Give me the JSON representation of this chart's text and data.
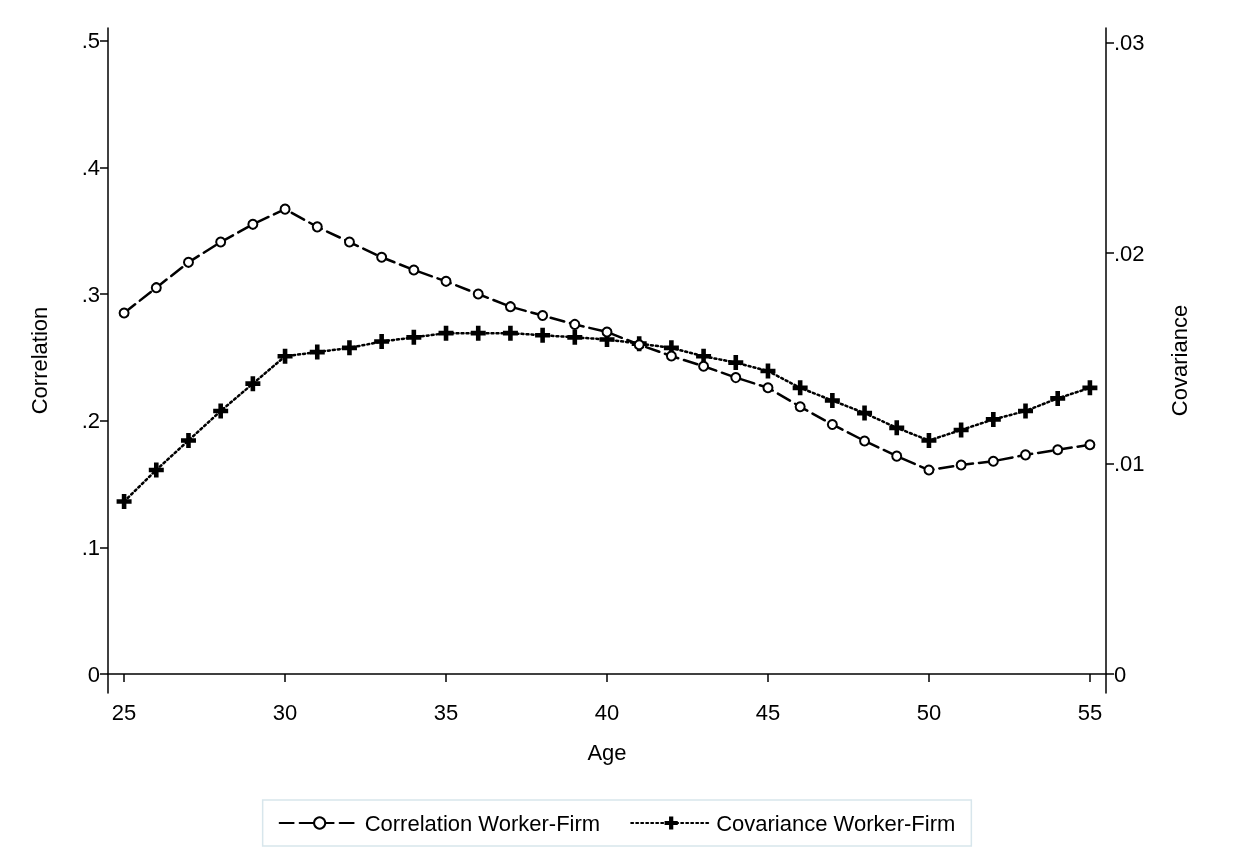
{
  "chart_data": {
    "type": "line",
    "xlabel": "Age",
    "ylabel": "Correlation",
    "y2label": "Covariance",
    "x": [
      25,
      26,
      27,
      28,
      29,
      30,
      31,
      32,
      33,
      34,
      35,
      36,
      37,
      38,
      39,
      40,
      41,
      42,
      43,
      44,
      45,
      46,
      47,
      48,
      49,
      50,
      51,
      52,
      53,
      54,
      55
    ],
    "xlim": [
      24.5,
      55.5
    ],
    "xticks": [
      25,
      30,
      35,
      40,
      45,
      50,
      55
    ],
    "ylim": [
      -0.015,
      0.51
    ],
    "yticks": [
      {
        "value": 0,
        "label": "0"
      },
      {
        "value": 0.1,
        "label": ".1"
      },
      {
        "value": 0.2,
        "label": ".2"
      },
      {
        "value": 0.3,
        "label": ".3"
      },
      {
        "value": 0.4,
        "label": ".4"
      },
      {
        "value": 0.5,
        "label": ".5"
      }
    ],
    "y2lim": [
      -0.0009,
      0.0307
    ],
    "y2ticks": [
      {
        "value": 0,
        "label": "0"
      },
      {
        "value": 0.01,
        "label": ".01"
      },
      {
        "value": 0.02,
        "label": ".02"
      },
      {
        "value": 0.03,
        "label": ".03"
      }
    ],
    "grid": false,
    "legend": "bottom",
    "series": [
      {
        "name": "Correlation Worker-Firm",
        "color": "#000000",
        "marker": "circle",
        "line_style": "dashed",
        "values": [
          0.285,
          0.305,
          0.325,
          0.341,
          0.355,
          0.367,
          0.353,
          0.341,
          0.329,
          0.319,
          0.31,
          0.3,
          0.29,
          0.283,
          0.276,
          0.27,
          0.26,
          0.251,
          0.243,
          0.234,
          0.226,
          0.211,
          0.197,
          0.184,
          0.172,
          0.161,
          0.165,
          0.168,
          0.173,
          0.177,
          0.181
        ]
      },
      {
        "name": "Covariance Worker-Firm",
        "color": "#000000",
        "marker": "cross",
        "line_style": "dotted",
        "axis": "y2",
        "values": [
          0.0082,
          0.0097,
          0.0111,
          0.0125,
          0.0138,
          0.0151,
          0.0153,
          0.0155,
          0.0158,
          0.016,
          0.0162,
          0.0162,
          0.0162,
          0.0161,
          0.016,
          0.0159,
          0.0157,
          0.0155,
          0.0151,
          0.0148,
          0.0144,
          0.0136,
          0.013,
          0.0124,
          0.0117,
          0.0111,
          0.0116,
          0.0121,
          0.0125,
          0.0131,
          0.0136
        ]
      }
    ]
  }
}
